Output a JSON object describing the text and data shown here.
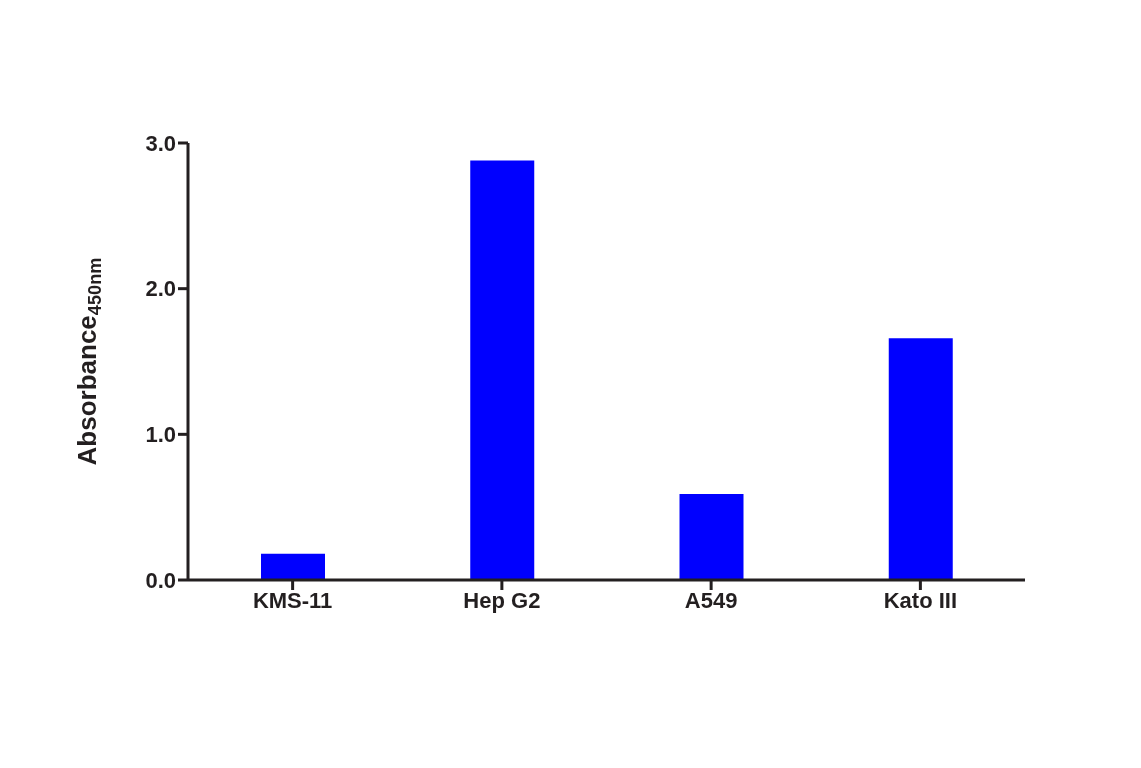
{
  "chart_data": {
    "type": "bar",
    "ylabel": "Absorbance$_{450nm}$",
    "categories": [
      "KMS-11",
      "Hep G2",
      "A549",
      "Kato III"
    ],
    "values": [
      0.18,
      2.88,
      0.59,
      1.66
    ],
    "color": "#0000ff",
    "ylim": [
      0,
      3
    ],
    "yticks": [
      {
        "value": 0,
        "label": "0.0"
      },
      {
        "value": 1,
        "label": "1.0"
      },
      {
        "value": 2,
        "label": "2.0"
      },
      {
        "value": 3,
        "label": "3.0"
      }
    ],
    "grid": false,
    "legend": false
  }
}
